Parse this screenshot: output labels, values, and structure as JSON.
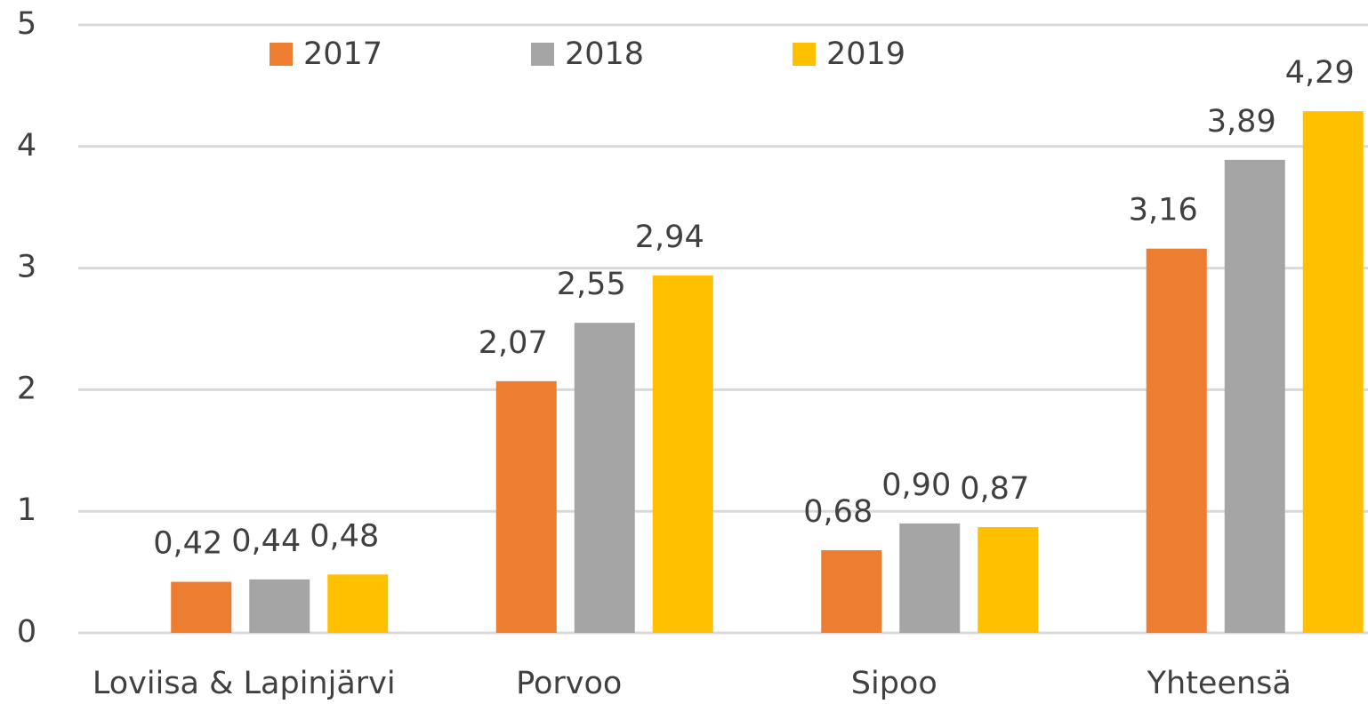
{
  "chart_data": {
    "type": "bar",
    "categories": [
      "Loviisa & Lapinjärvi",
      "Porvoo",
      "Sipoo",
      "Yhteensä"
    ],
    "series": [
      {
        "name": "2017",
        "color": "#ED7D31",
        "values": [
          0.42,
          2.07,
          0.68,
          3.16
        ],
        "value_labels": [
          "0,42",
          "2,07",
          "0,68",
          "3,16"
        ]
      },
      {
        "name": "2018",
        "color": "#A5A5A5",
        "values": [
          0.44,
          2.55,
          0.9,
          3.89
        ],
        "value_labels": [
          "0,44",
          "2,55",
          "0,90",
          "3,89"
        ]
      },
      {
        "name": "2019",
        "color": "#FFC000",
        "values": [
          0.48,
          2.94,
          0.87,
          4.29
        ],
        "value_labels": [
          "0,48",
          "2,94",
          "0,87",
          "4,29"
        ]
      }
    ],
    "ylim": [
      0,
      5
    ],
    "yticks": [
      0,
      1,
      2,
      3,
      4,
      5
    ],
    "grid": true,
    "legend": "top"
  }
}
